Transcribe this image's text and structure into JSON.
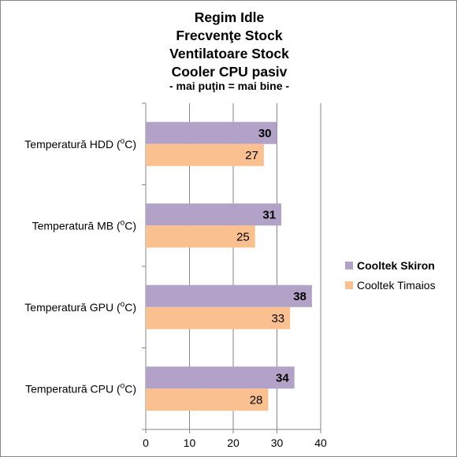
{
  "chart_data": {
    "type": "bar",
    "orientation": "horizontal",
    "title_lines": [
      "Regim Idle",
      "Frecvenţe Stock",
      "Ventilatoare Stock",
      "Cooler CPU pasiv"
    ],
    "subtitle": "- mai puţin = mai bine -",
    "categories": [
      {
        "base": "Temperatură  HDD (",
        "sup": "o",
        "tail": "C)"
      },
      {
        "base": "Temperatură  MB (",
        "sup": "o",
        "tail": "C)"
      },
      {
        "base": "Temperatură  GPU (",
        "sup": "o",
        "tail": "C)"
      },
      {
        "base": "Temperatură  CPU (",
        "sup": "o",
        "tail": "C)"
      }
    ],
    "series": [
      {
        "name": "Cooltek Skiron",
        "values": [
          30,
          31,
          38,
          34
        ],
        "color": "#b3a2c7",
        "label_bold": true
      },
      {
        "name": "Cooltek Timaios",
        "values": [
          27,
          25,
          33,
          28
        ],
        "color": "#fac090",
        "label_bold": false
      }
    ],
    "xlim": [
      0,
      40
    ],
    "xticks": [
      0,
      10,
      20,
      30,
      40
    ],
    "grid": true,
    "legend_position": "right"
  }
}
